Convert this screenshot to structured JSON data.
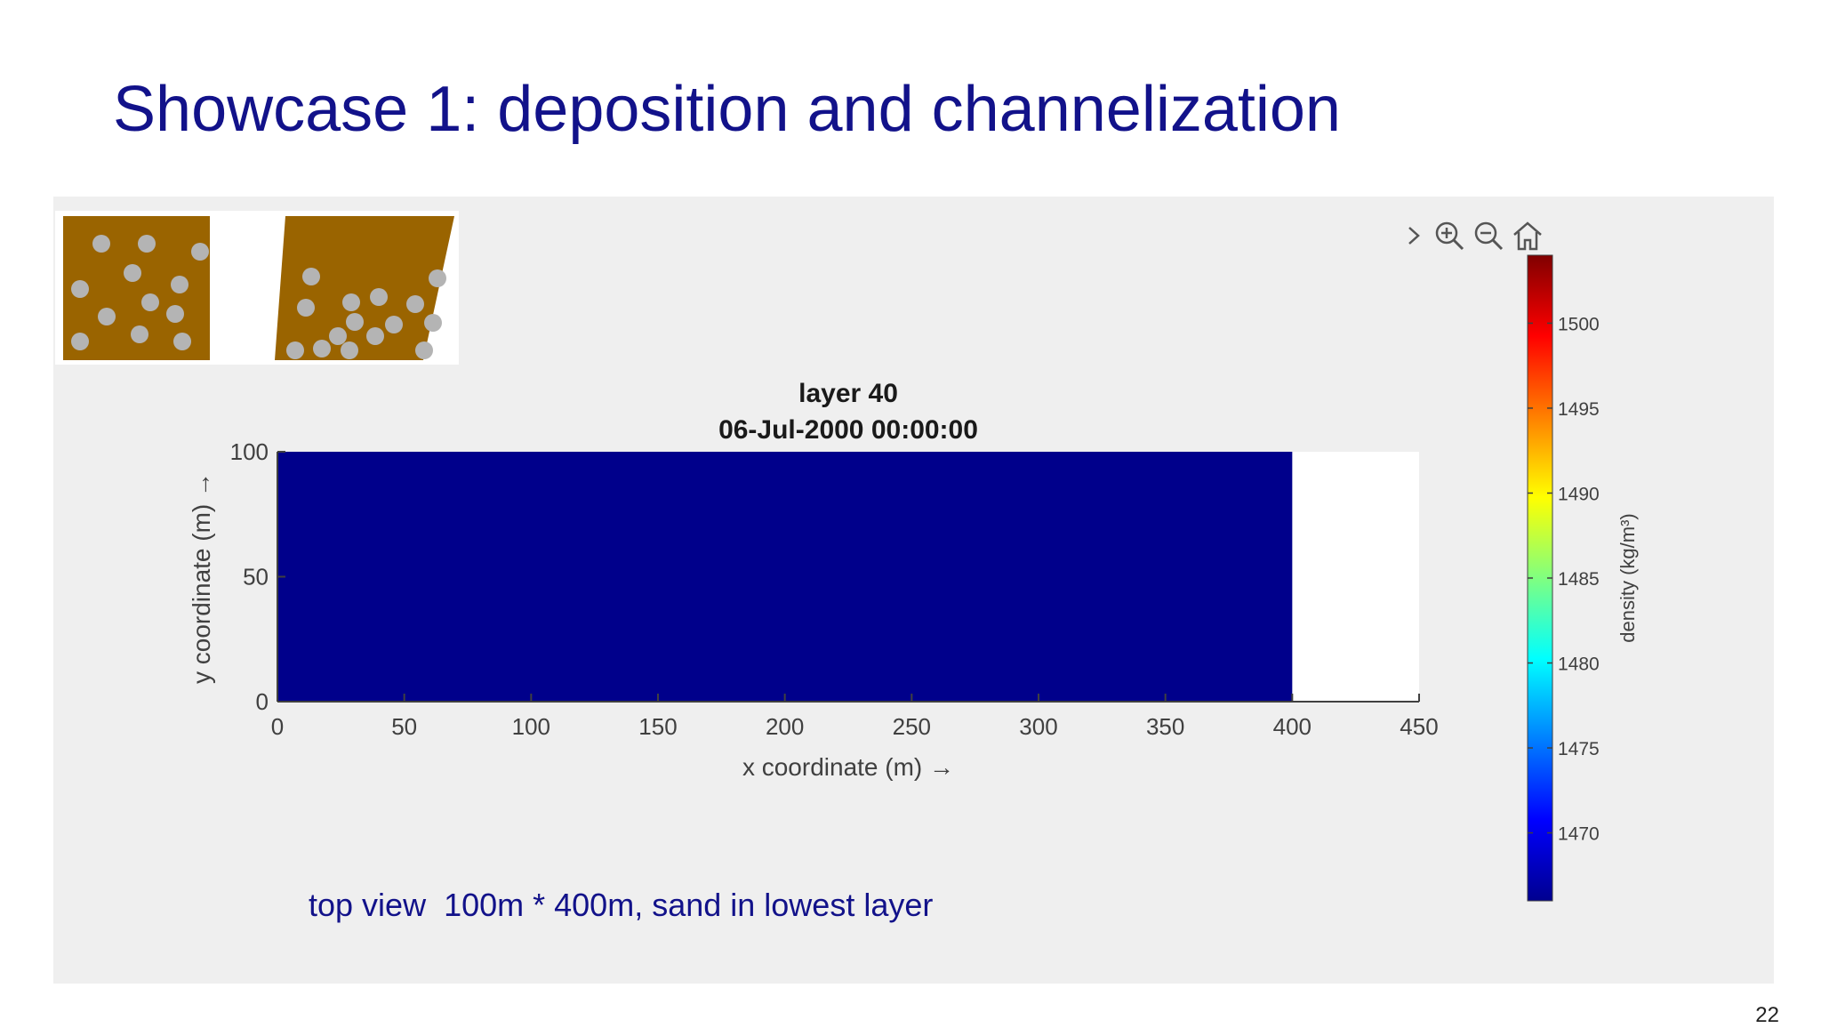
{
  "slide": {
    "title": "Showcase 1: deposition and channelization",
    "caption": "top view  100m * 400m, sand in lowest layer",
    "page_number": "22"
  },
  "toolbar": {
    "icons": [
      "chevron-right-icon",
      "zoom-in-icon",
      "zoom-out-icon",
      "home-icon"
    ]
  },
  "colors": {
    "title_text": "#12128a",
    "panel_bg": "#efefef",
    "field_fill": "#00008b",
    "grain_bg": "#9a6400",
    "grain_dot": "#b4b4b4"
  },
  "chart_data": {
    "type": "heatmap",
    "title": [
      "layer 40",
      "06-Jul-2000 00:00:00"
    ],
    "xlabel": "x coordinate (m) →",
    "ylabel": "y coordinate (m) →",
    "xlim": [
      0,
      450
    ],
    "ylim": [
      0,
      100
    ],
    "xticks": [
      0,
      50,
      100,
      150,
      200,
      250,
      300,
      350,
      400,
      450
    ],
    "yticks": [
      0,
      50,
      100
    ],
    "field": {
      "x_range": [
        0,
        400
      ],
      "y_range": [
        0,
        100
      ],
      "value": 1466,
      "color": "#00008b"
    },
    "colorbar": {
      "label": "density (kg/m³)",
      "colormap": "jet",
      "min": 1466,
      "max": 1504,
      "ticks": [
        1470,
        1475,
        1480,
        1485,
        1490,
        1495,
        1500
      ]
    }
  }
}
